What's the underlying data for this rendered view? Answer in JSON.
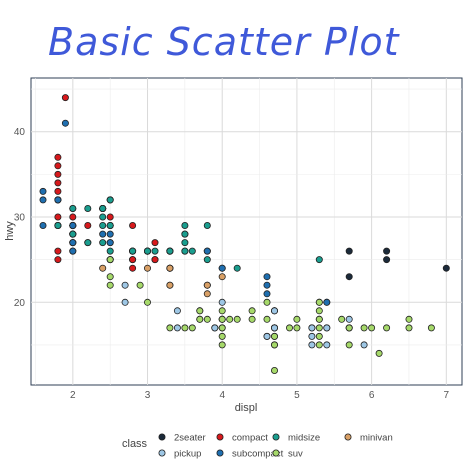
{
  "chart_data": {
    "type": "scatter",
    "title": "Basic Scatter Plot",
    "xlabel": "displ",
    "ylabel": "hwy",
    "xlim": [
      1.44,
      7.21
    ],
    "ylim": [
      10.3,
      46.3
    ],
    "x_ticks": [
      2,
      3,
      4,
      5,
      6,
      7
    ],
    "y_ticks": [
      20,
      30,
      40
    ],
    "grid": true,
    "legend_title": "class",
    "legend_position": "bottom",
    "series": [
      {
        "name": "2seater",
        "color": "#1b2a3a",
        "points": [
          [
            5.7,
            26
          ],
          [
            5.7,
            23
          ],
          [
            6.2,
            26
          ],
          [
            6.2,
            25
          ],
          [
            7.0,
            24
          ]
        ]
      },
      {
        "name": "compact",
        "color": "#d7191c",
        "points": [
          [
            1.8,
            29
          ],
          [
            1.8,
            29
          ],
          [
            2.0,
            31
          ],
          [
            2.0,
            30
          ],
          [
            2.8,
            26
          ],
          [
            2.8,
            26
          ],
          [
            3.1,
            27
          ],
          [
            1.8,
            26
          ],
          [
            1.8,
            25
          ],
          [
            2.0,
            28
          ],
          [
            2.0,
            29
          ],
          [
            2.8,
            25
          ],
          [
            2.8,
            25
          ],
          [
            3.1,
            25
          ],
          [
            3.1,
            25
          ],
          [
            2.2,
            27
          ],
          [
            2.2,
            29
          ],
          [
            2.4,
            31
          ],
          [
            2.4,
            31
          ],
          [
            3.0,
            26
          ],
          [
            1.8,
            37
          ],
          [
            1.8,
            35
          ],
          [
            1.8,
            36
          ],
          [
            1.8,
            33
          ],
          [
            1.8,
            34
          ],
          [
            1.8,
            30
          ],
          [
            1.9,
            44
          ],
          [
            2.0,
            27
          ],
          [
            2.0,
            27
          ],
          [
            2.5,
            29
          ],
          [
            2.5,
            29
          ],
          [
            2.8,
            26
          ],
          [
            2.8,
            24
          ],
          [
            2.0,
            28
          ],
          [
            2.0,
            29
          ],
          [
            2.0,
            29
          ],
          [
            2.0,
            28
          ],
          [
            2.8,
            29
          ],
          [
            1.8,
            32
          ],
          [
            1.8,
            32
          ],
          [
            2.0,
            29
          ],
          [
            2.5,
            30
          ],
          [
            2.0,
            26
          ]
        ]
      },
      {
        "name": "midsize",
        "color": "#1a9e8f",
        "points": [
          [
            2.4,
            27
          ],
          [
            2.4,
            30
          ],
          [
            3.1,
            26
          ],
          [
            3.5,
            29
          ],
          [
            3.6,
            26
          ],
          [
            2.4,
            31
          ],
          [
            3.0,
            26
          ],
          [
            3.3,
            26
          ],
          [
            3.3,
            26
          ],
          [
            3.8,
            26
          ],
          [
            3.8,
            25
          ],
          [
            4.0,
            24
          ],
          [
            2.5,
            32
          ],
          [
            2.5,
            32
          ],
          [
            2.5,
            32
          ],
          [
            2.5,
            29
          ],
          [
            3.3,
            26
          ],
          [
            3.5,
            27
          ],
          [
            3.5,
            26
          ],
          [
            3.5,
            28
          ],
          [
            3.8,
            29
          ],
          [
            2.4,
            31
          ],
          [
            2.4,
            31
          ],
          [
            3.3,
            26
          ],
          [
            3.3,
            24
          ],
          [
            3.3,
            26
          ],
          [
            1.8,
            29
          ],
          [
            1.8,
            29
          ],
          [
            2.4,
            29
          ],
          [
            3.0,
            26
          ],
          [
            3.5,
            26
          ],
          [
            2.5,
            26
          ],
          [
            2.2,
            31
          ],
          [
            2.2,
            27
          ],
          [
            3.0,
            26
          ],
          [
            3.0,
            26
          ],
          [
            3.5,
            28
          ],
          [
            2.0,
            31
          ],
          [
            2.0,
            28
          ],
          [
            2.8,
            26
          ],
          [
            4.2,
            24
          ],
          [
            5.3,
            25
          ]
        ]
      },
      {
        "name": "minivan",
        "color": "#d9a066",
        "points": [
          [
            2.4,
            24
          ],
          [
            3.0,
            24
          ],
          [
            3.3,
            22
          ],
          [
            3.3,
            22
          ],
          [
            3.3,
            24
          ],
          [
            3.3,
            24
          ],
          [
            3.3,
            24
          ],
          [
            3.8,
            22
          ],
          [
            3.8,
            21
          ],
          [
            3.8,
            22
          ],
          [
            4.0,
            23
          ]
        ]
      },
      {
        "name": "pickup",
        "color": "#9ec7e5",
        "points": [
          [
            3.7,
            19
          ],
          [
            3.7,
            18
          ],
          [
            3.9,
            17
          ],
          [
            3.9,
            17
          ],
          [
            4.7,
            19
          ],
          [
            4.7,
            19
          ],
          [
            4.7,
            17
          ],
          [
            4.7,
            17
          ],
          [
            5.2,
            17
          ],
          [
            5.2,
            15
          ],
          [
            5.7,
            17
          ],
          [
            5.9,
            15
          ],
          [
            4.7,
            15
          ],
          [
            4.7,
            17
          ],
          [
            4.7,
            16
          ],
          [
            5.2,
            16
          ],
          [
            5.2,
            17
          ],
          [
            2.7,
            20
          ],
          [
            2.7,
            22
          ],
          [
            3.4,
            19
          ],
          [
            3.4,
            17
          ],
          [
            4.0,
            18
          ],
          [
            4.0,
            20
          ],
          [
            4.0,
            17
          ],
          [
            4.7,
            17
          ],
          [
            4.7,
            19
          ],
          [
            5.7,
            18
          ],
          [
            5.7,
            17
          ],
          [
            4.6,
            16
          ],
          [
            4.6,
            16
          ],
          [
            5.4,
            17
          ],
          [
            5.4,
            15
          ],
          [
            5.4,
            17
          ]
        ]
      },
      {
        "name": "subcompact",
        "color": "#1f6fb0",
        "points": [
          [
            1.6,
            33
          ],
          [
            1.6,
            32
          ],
          [
            1.6,
            29
          ],
          [
            1.8,
            32
          ],
          [
            1.8,
            32
          ],
          [
            1.9,
            41
          ],
          [
            2.0,
            27
          ],
          [
            2.0,
            26
          ],
          [
            2.5,
            25
          ],
          [
            2.5,
            28
          ],
          [
            2.5,
            27
          ],
          [
            2.5,
            25
          ],
          [
            2.5,
            27
          ],
          [
            3.8,
            26
          ],
          [
            4.0,
            24
          ],
          [
            4.6,
            21
          ],
          [
            4.6,
            22
          ],
          [
            5.4,
            20
          ],
          [
            4.6,
            23
          ],
          [
            5.4,
            20
          ],
          [
            2.0,
            29
          ],
          [
            2.4,
            28
          ]
        ]
      },
      {
        "name": "suv",
        "color": "#a6d96a",
        "points": [
          [
            5.3,
            20
          ],
          [
            5.3,
            15
          ],
          [
            5.3,
            20
          ],
          [
            5.7,
            17
          ],
          [
            6.0,
            17
          ],
          [
            5.7,
            15
          ],
          [
            6.5,
            17
          ],
          [
            4.0,
            17
          ],
          [
            4.0,
            19
          ],
          [
            4.6,
            18
          ],
          [
            5.0,
            17
          ],
          [
            5.3,
            19
          ],
          [
            5.3,
            18
          ],
          [
            5.6,
            18
          ],
          [
            6.1,
            14
          ],
          [
            2.5,
            23
          ],
          [
            2.5,
            25
          ],
          [
            2.5,
            22
          ],
          [
            3.5,
            17
          ],
          [
            3.3,
            17
          ],
          [
            3.7,
            19
          ],
          [
            3.7,
            18
          ],
          [
            4.0,
            15
          ],
          [
            4.7,
            12
          ],
          [
            4.7,
            15
          ],
          [
            4.2,
            18
          ],
          [
            4.4,
            18
          ],
          [
            4.7,
            16
          ],
          [
            4.9,
            17
          ],
          [
            5.0,
            18
          ],
          [
            5.9,
            17
          ],
          [
            4.0,
            18
          ],
          [
            4.6,
            20
          ],
          [
            5.3,
            16
          ],
          [
            6.2,
            17
          ],
          [
            5.3,
            18
          ],
          [
            6.5,
            18
          ],
          [
            4.0,
            18
          ],
          [
            2.9,
            22
          ],
          [
            3.0,
            20
          ],
          [
            3.6,
            17
          ],
          [
            3.8,
            18
          ],
          [
            4.0,
            16
          ],
          [
            4.1,
            18
          ],
          [
            4.4,
            19
          ],
          [
            5.3,
            17
          ],
          [
            6.8,
            17
          ]
        ]
      }
    ]
  }
}
